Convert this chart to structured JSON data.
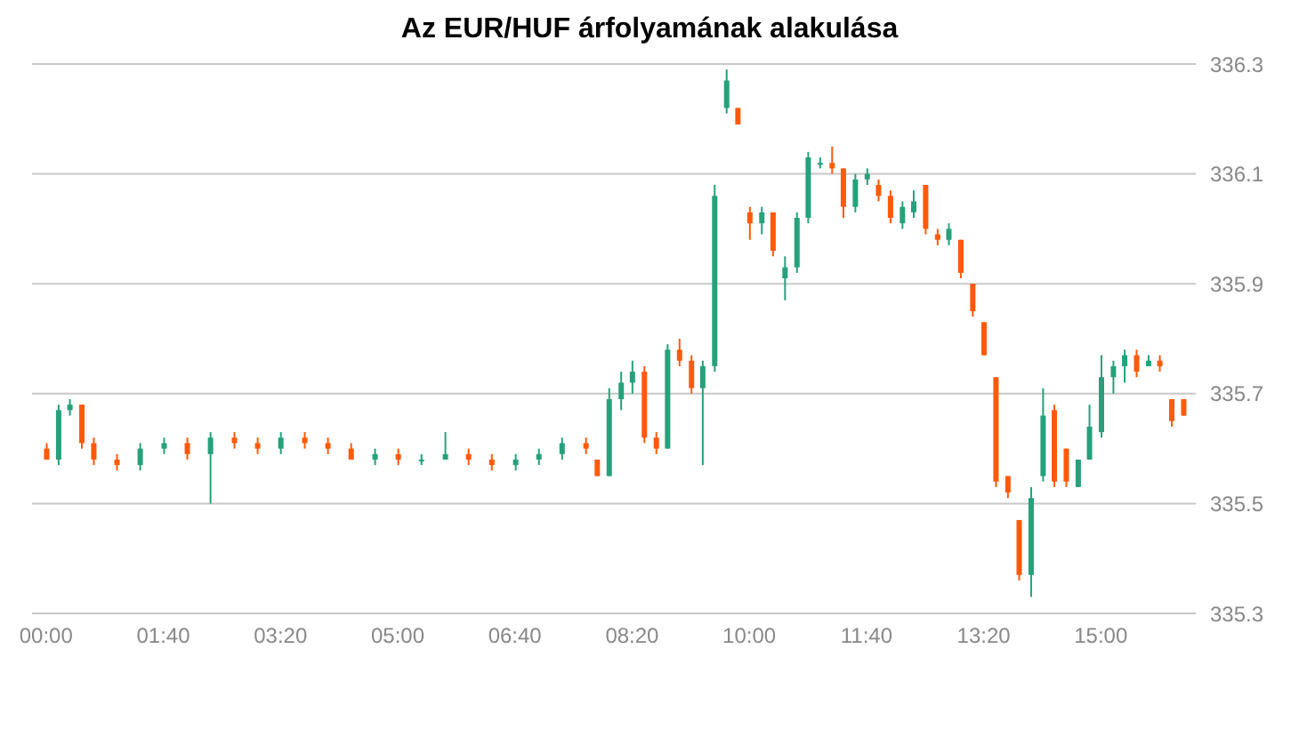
{
  "chart_data": {
    "type": "candlestick",
    "title": "Az EUR/HUF árfolyamának alakulása",
    "x": [
      0,
      0.17,
      0.33,
      0.5,
      0.67,
      1,
      1.33,
      1.67,
      2,
      2.33,
      2.67,
      3,
      3.33,
      3.67,
      4,
      4.33,
      4.67,
      5,
      5.33,
      5.67,
      6,
      6.33,
      6.67,
      7,
      7.33,
      7.67,
      7.83,
      8,
      8.17,
      8.33,
      8.5,
      8.67,
      8.83,
      9,
      9.17,
      9.33,
      9.5,
      9.67,
      9.83,
      10,
      10.17,
      10.33,
      10.5,
      10.67,
      10.83,
      11,
      11.17,
      11.33,
      11.5,
      11.67,
      11.83,
      12,
      12.17,
      12.33,
      12.5,
      12.67,
      12.83,
      13,
      13.17,
      13.33,
      13.5,
      13.67,
      13.83,
      14,
      14.17,
      14.33,
      14.5,
      14.67,
      14.83,
      15,
      15.17,
      15.33,
      15.5,
      15.67,
      15.83,
      16,
      16.17
    ],
    "ohlc": [
      [
        335.6,
        335.61,
        335.58,
        335.58
      ],
      [
        335.58,
        335.68,
        335.57,
        335.67
      ],
      [
        335.67,
        335.69,
        335.66,
        335.68
      ],
      [
        335.68,
        335.68,
        335.6,
        335.61
      ],
      [
        335.61,
        335.62,
        335.57,
        335.58
      ],
      [
        335.58,
        335.59,
        335.56,
        335.57
      ],
      [
        335.57,
        335.61,
        335.56,
        335.6
      ],
      [
        335.6,
        335.62,
        335.59,
        335.61
      ],
      [
        335.61,
        335.62,
        335.58,
        335.59
      ],
      [
        335.59,
        335.63,
        335.5,
        335.62
      ],
      [
        335.62,
        335.63,
        335.6,
        335.61
      ],
      [
        335.61,
        335.62,
        335.59,
        335.6
      ],
      [
        335.6,
        335.63,
        335.59,
        335.62
      ],
      [
        335.62,
        335.63,
        335.6,
        335.61
      ],
      [
        335.61,
        335.62,
        335.59,
        335.6
      ],
      [
        335.6,
        335.61,
        335.58,
        335.58
      ],
      [
        335.58,
        335.6,
        335.57,
        335.59
      ],
      [
        335.59,
        335.6,
        335.57,
        335.58
      ],
      [
        335.58,
        335.59,
        335.57,
        335.58
      ],
      [
        335.58,
        335.63,
        335.58,
        335.59
      ],
      [
        335.59,
        335.6,
        335.57,
        335.58
      ],
      [
        335.58,
        335.59,
        335.56,
        335.57
      ],
      [
        335.57,
        335.59,
        335.56,
        335.58
      ],
      [
        335.58,
        335.6,
        335.57,
        335.59
      ],
      [
        335.59,
        335.62,
        335.58,
        335.61
      ],
      [
        335.61,
        335.62,
        335.59,
        335.6
      ],
      [
        335.58,
        335.58,
        335.55,
        335.55
      ],
      [
        335.55,
        335.71,
        335.55,
        335.69
      ],
      [
        335.69,
        335.74,
        335.67,
        335.72
      ],
      [
        335.72,
        335.76,
        335.7,
        335.74
      ],
      [
        335.74,
        335.75,
        335.61,
        335.62
      ],
      [
        335.62,
        335.63,
        335.59,
        335.6
      ],
      [
        335.6,
        335.79,
        335.6,
        335.78
      ],
      [
        335.78,
        335.8,
        335.75,
        335.76
      ],
      [
        335.76,
        335.77,
        335.7,
        335.71
      ],
      [
        335.71,
        335.76,
        335.57,
        335.75
      ],
      [
        335.75,
        336.08,
        335.74,
        336.06
      ],
      [
        336.22,
        336.29,
        336.21,
        336.27
      ],
      [
        336.22,
        336.22,
        336.19,
        336.19
      ],
      [
        336.03,
        336.04,
        335.98,
        336.01
      ],
      [
        336.01,
        336.04,
        335.99,
        336.03
      ],
      [
        336.03,
        336.03,
        335.95,
        335.96
      ],
      [
        335.91,
        335.95,
        335.87,
        335.93
      ],
      [
        335.93,
        336.03,
        335.92,
        336.02
      ],
      [
        336.02,
        336.14,
        336.01,
        336.13
      ],
      [
        336.12,
        336.13,
        336.11,
        336.12
      ],
      [
        336.12,
        336.15,
        336.1,
        336.11
      ],
      [
        336.11,
        336.11,
        336.02,
        336.04
      ],
      [
        336.04,
        336.1,
        336.03,
        336.09
      ],
      [
        336.09,
        336.11,
        336.08,
        336.1
      ],
      [
        336.08,
        336.09,
        336.05,
        336.06
      ],
      [
        336.06,
        336.07,
        336.01,
        336.02
      ],
      [
        336.01,
        336.05,
        336.0,
        336.04
      ],
      [
        336.03,
        336.07,
        336.02,
        336.05
      ],
      [
        336.08,
        336.08,
        335.99,
        336.0
      ],
      [
        335.99,
        336.0,
        335.97,
        335.98
      ],
      [
        335.98,
        336.01,
        335.97,
        336.0
      ],
      [
        335.98,
        335.98,
        335.91,
        335.92
      ],
      [
        335.9,
        335.9,
        335.84,
        335.85
      ],
      [
        335.83,
        335.83,
        335.77,
        335.77
      ],
      [
        335.73,
        335.73,
        335.53,
        335.54
      ],
      [
        335.55,
        335.55,
        335.51,
        335.52
      ],
      [
        335.47,
        335.47,
        335.36,
        335.37
      ],
      [
        335.37,
        335.53,
        335.33,
        335.51
      ],
      [
        335.55,
        335.71,
        335.54,
        335.66
      ],
      [
        335.67,
        335.68,
        335.53,
        335.54
      ],
      [
        335.6,
        335.6,
        335.53,
        335.54
      ],
      [
        335.53,
        335.58,
        335.53,
        335.58
      ],
      [
        335.58,
        335.68,
        335.58,
        335.64
      ],
      [
        335.63,
        335.77,
        335.62,
        335.73
      ],
      [
        335.73,
        335.76,
        335.7,
        335.75
      ],
      [
        335.75,
        335.78,
        335.72,
        335.77
      ],
      [
        335.77,
        335.78,
        335.73,
        335.74
      ],
      [
        335.75,
        335.77,
        335.75,
        335.76
      ],
      [
        335.76,
        335.77,
        335.74,
        335.75
      ],
      [
        335.69,
        335.69,
        335.64,
        335.65
      ],
      [
        335.69,
        335.69,
        335.66,
        335.66
      ]
    ],
    "colors": [
      "#ff5a0a",
      "#26a17b",
      "#26a17b",
      "#ff5a0a",
      "#ff5a0a",
      "#ff5a0a",
      "#26a17b",
      "#26a17b",
      "#ff5a0a",
      "#26a17b",
      "#ff5a0a",
      "#ff5a0a",
      "#26a17b",
      "#ff5a0a",
      "#ff5a0a",
      "#ff5a0a",
      "#26a17b",
      "#ff5a0a",
      "#26a17b",
      "#26a17b",
      "#ff5a0a",
      "#ff5a0a",
      "#26a17b",
      "#26a17b",
      "#26a17b",
      "#ff5a0a",
      "#ff5a0a",
      "#26a17b",
      "#26a17b",
      "#26a17b",
      "#ff5a0a",
      "#ff5a0a",
      "#26a17b",
      "#ff5a0a",
      "#ff5a0a",
      "#26a17b",
      "#26a17b",
      "#26a17b",
      "#ff5a0a",
      "#ff5a0a",
      "#26a17b",
      "#ff5a0a",
      "#26a17b",
      "#26a17b",
      "#26a17b",
      "#26a17b",
      "#ff5a0a",
      "#ff5a0a",
      "#26a17b",
      "#26a17b",
      "#ff5a0a",
      "#ff5a0a",
      "#26a17b",
      "#26a17b",
      "#ff5a0a",
      "#ff5a0a",
      "#26a17b",
      "#ff5a0a",
      "#ff5a0a",
      "#ff5a0a",
      "#ff5a0a",
      "#ff5a0a",
      "#ff5a0a",
      "#26a17b",
      "#26a17b",
      "#ff5a0a",
      "#ff5a0a",
      "#26a17b",
      "#26a17b",
      "#26a17b",
      "#26a17b",
      "#26a17b",
      "#ff5a0a",
      "#26a17b",
      "#ff5a0a",
      "#ff5a0a",
      "#ff5a0a"
    ],
    "xlim": [
      -0.2,
      16.35
    ],
    "xticks": [
      {
        "value": 0,
        "label": "00:00"
      },
      {
        "value": 1.6667,
        "label": "01:40"
      },
      {
        "value": 3.3333,
        "label": "03:20"
      },
      {
        "value": 5,
        "label": "05:00"
      },
      {
        "value": 6.6667,
        "label": "06:40"
      },
      {
        "value": 8.3333,
        "label": "08:20"
      },
      {
        "value": 10,
        "label": "10:00"
      },
      {
        "value": 11.6667,
        "label": "11:40"
      },
      {
        "value": 13.3333,
        "label": "13:20"
      },
      {
        "value": 15,
        "label": "15:00"
      }
    ],
    "ylim": [
      335.3,
      336.3
    ],
    "yticks": [
      335.3,
      335.5,
      335.7,
      335.9,
      336.1,
      336.3
    ],
    "grid": "y"
  }
}
